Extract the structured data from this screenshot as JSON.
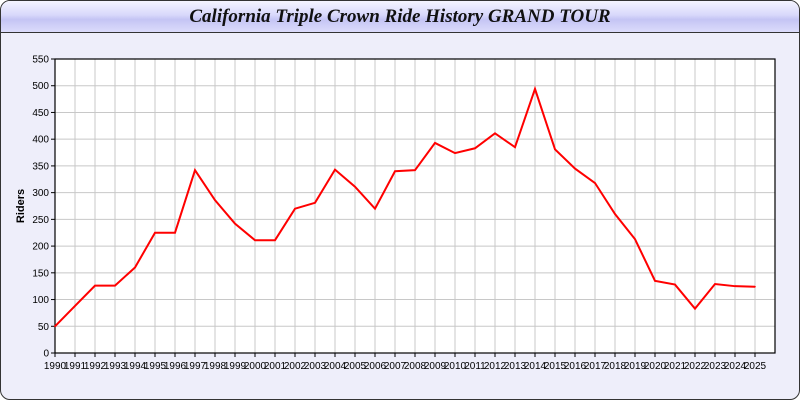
{
  "chart_data": {
    "type": "line",
    "title": "California Triple Crown Ride History GRAND TOUR",
    "xlabel": "",
    "ylabel": "Riders",
    "ylim": [
      0,
      550
    ],
    "yticks": [
      0,
      50,
      100,
      150,
      200,
      250,
      300,
      350,
      400,
      450,
      500,
      550
    ],
    "grid": true,
    "line_color": "#ff0000",
    "categories": [
      "1990",
      "1991",
      "1992",
      "1993",
      "1994",
      "1995",
      "1996",
      "1997",
      "1998",
      "1999",
      "2000",
      "2001",
      "2002",
      "2003",
      "2004",
      "2005",
      "2006",
      "2007",
      "2008",
      "2009",
      "2010",
      "2011",
      "2012",
      "2013",
      "2014",
      "2015",
      "2016",
      "2017",
      "2018",
      "2019",
      "2020",
      "2021",
      "2022",
      "2023",
      "2024",
      "2025"
    ],
    "series": [
      {
        "values": [
          50,
          88,
          126,
          126,
          160,
          225,
          225,
          342,
          286,
          242,
          211,
          211,
          270,
          281,
          343,
          311,
          270,
          340,
          342,
          393,
          374,
          383,
          411,
          385,
          494,
          381,
          345,
          318,
          260,
          213,
          135,
          128,
          83,
          129,
          125,
          124
        ]
      }
    ]
  }
}
